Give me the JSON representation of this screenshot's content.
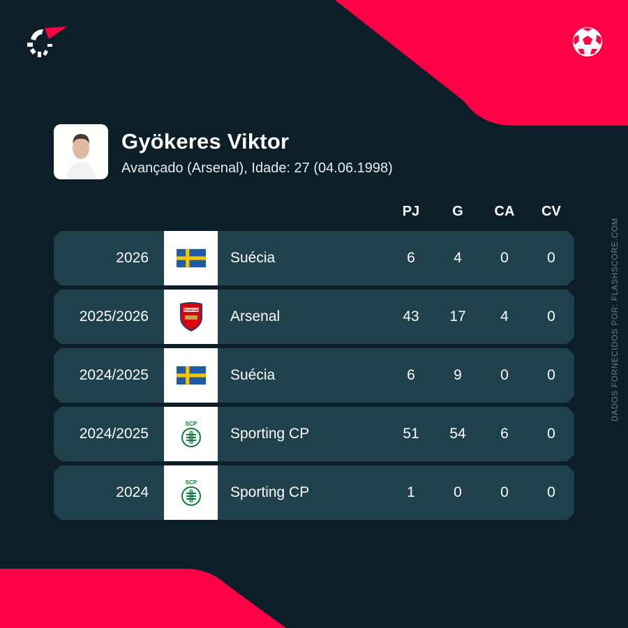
{
  "header": {
    "brand_logo": "flashscore-logo",
    "sport_icon": "football-icon",
    "colors": {
      "accent": "#ff0046",
      "background": "#0c1f29",
      "row": "#1e414b"
    }
  },
  "player": {
    "name": "Gyökeres Viktor",
    "details": "Avançado (Arsenal), Idade: 27 (04.06.1998)"
  },
  "columns": [
    "PJ",
    "G",
    "CA",
    "CV"
  ],
  "rows": [
    {
      "season": "2026",
      "team": "Suécia",
      "crest": "sweden-flag",
      "pj": "6",
      "g": "4",
      "ca": "0",
      "cv": "0"
    },
    {
      "season": "2025/2026",
      "team": "Arsenal",
      "crest": "arsenal-crest",
      "pj": "43",
      "g": "17",
      "ca": "4",
      "cv": "0"
    },
    {
      "season": "2024/2025",
      "team": "Suécia",
      "crest": "sweden-flag",
      "pj": "6",
      "g": "9",
      "ca": "0",
      "cv": "0"
    },
    {
      "season": "2024/2025",
      "team": "Sporting CP",
      "crest": "sporting-crest",
      "pj": "51",
      "g": "54",
      "ca": "6",
      "cv": "0"
    },
    {
      "season": "2024",
      "team": "Sporting CP",
      "crest": "sporting-crest",
      "pj": "1",
      "g": "0",
      "ca": "0",
      "cv": "0"
    }
  ],
  "credit": "DADOS FORNECIDOS POR: FLASHSCORE.COM"
}
